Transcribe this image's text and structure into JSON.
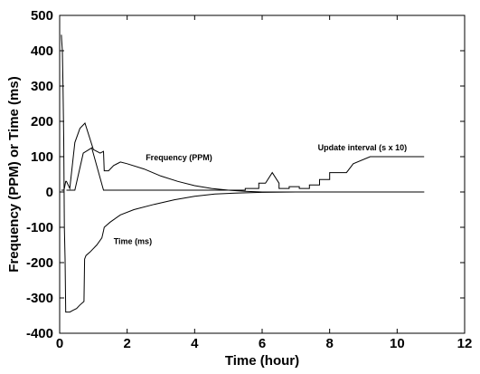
{
  "chart_data": {
    "type": "line",
    "title": "",
    "xlabel": "Time (hour)",
    "ylabel": "Frequency (PPM) or Time (ms)",
    "xlim": [
      0,
      12
    ],
    "ylim": [
      -400,
      500
    ],
    "grid": false,
    "xticks": [
      0,
      2,
      4,
      6,
      8,
      10,
      12
    ],
    "yticks": [
      -400,
      -300,
      -200,
      -100,
      0,
      100,
      200,
      300,
      400,
      500
    ],
    "series": [
      {
        "name": "Frequency (PPM)",
        "x": [
          0.05,
          0.12,
          0.14,
          0.18,
          0.2,
          0.3,
          0.45,
          0.6,
          0.75,
          1.0,
          1.2,
          1.3,
          1.32,
          1.45,
          1.6,
          1.8,
          2.0,
          2.5,
          3.0,
          3.5,
          4.0,
          4.5,
          5.0,
          5.5,
          6.0,
          6.5,
          7.0,
          8.0,
          9.0,
          10.0,
          10.8
        ],
        "y": [
          5,
          5,
          10,
          30,
          30,
          10,
          140,
          180,
          195,
          120,
          110,
          115,
          60,
          60,
          75,
          85,
          80,
          65,
          45,
          30,
          18,
          10,
          5,
          2,
          0,
          0,
          0,
          0,
          0,
          0,
          0
        ]
      },
      {
        "name": "Time (ms)",
        "x": [
          0.05,
          0.06,
          0.08,
          0.1,
          0.12,
          0.14,
          0.16,
          0.18,
          0.2,
          0.3,
          0.4,
          0.5,
          0.6,
          0.72,
          0.74,
          0.78,
          0.9,
          1.1,
          1.25,
          1.3,
          1.32,
          1.5,
          1.8,
          2.2,
          2.8,
          3.4,
          4.0,
          4.6,
          5.2,
          6.0,
          7.0,
          8.0,
          9.0,
          10.0,
          10.8
        ],
        "y": [
          445,
          430,
          400,
          300,
          150,
          -100,
          -190,
          -340,
          -340,
          -340,
          -335,
          -330,
          -320,
          -310,
          -190,
          -180,
          -170,
          -150,
          -130,
          -110,
          -100,
          -85,
          -65,
          -50,
          -35,
          -22,
          -12,
          -6,
          -3,
          -1,
          0,
          0,
          0,
          0,
          0
        ]
      },
      {
        "name": "Update interval (s x 10)",
        "x": [
          0.2,
          0.45,
          0.7,
          0.7,
          0.95,
          0.95,
          1.3,
          1.3,
          5.5,
          5.5,
          5.9,
          5.9,
          6.1,
          6.3,
          6.5,
          6.5,
          6.8,
          6.8,
          7.1,
          7.1,
          7.4,
          7.4,
          7.7,
          7.7,
          8.0,
          8.0,
          8.5,
          8.5,
          8.7,
          9.2,
          10.8
        ],
        "y": [
          5,
          5,
          110,
          110,
          125,
          125,
          5,
          5,
          5,
          10,
          10,
          25,
          25,
          55,
          25,
          10,
          10,
          15,
          15,
          10,
          10,
          20,
          20,
          35,
          35,
          55,
          55,
          55,
          80,
          100,
          100
        ]
      }
    ],
    "annotations": [
      {
        "text": "Frequency (PPM)",
        "x": 2.55,
        "y": 90
      },
      {
        "text": "Update interval (s x 10)",
        "x": 7.65,
        "y": 118
      },
      {
        "text": "Time (ms)",
        "x": 1.6,
        "y": -148
      }
    ]
  }
}
